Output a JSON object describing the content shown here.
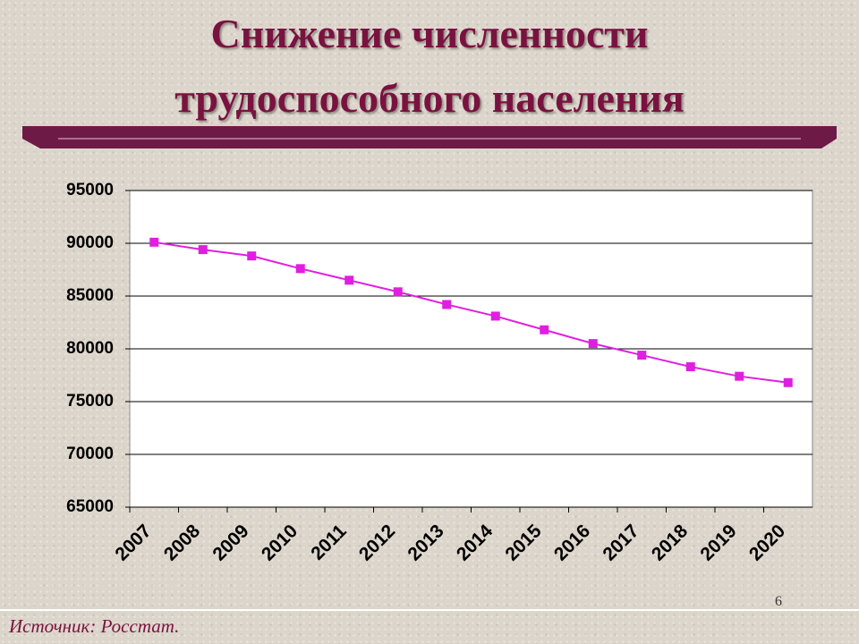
{
  "chart_data": {
    "type": "line",
    "title": "Снижение численности трудоспособного населения",
    "categories": [
      "2007",
      "2008",
      "2009",
      "2010",
      "2011",
      "2012",
      "2013",
      "2014",
      "2015",
      "2016",
      "2017",
      "2018",
      "2019",
      "2020"
    ],
    "series": [
      {
        "color": "#e01ee0",
        "values": [
          90100,
          89400,
          88800,
          87600,
          86500,
          85400,
          84200,
          83100,
          81800,
          80500,
          79400,
          78300,
          77400,
          76800
        ]
      }
    ],
    "ylim": [
      65000,
      95000
    ],
    "yticks": [
      65000,
      70000,
      75000,
      80000,
      85000,
      90000,
      95000
    ],
    "grid": true
  },
  "footer": {
    "source": "Источник: Росстат.",
    "page_number": "6"
  }
}
